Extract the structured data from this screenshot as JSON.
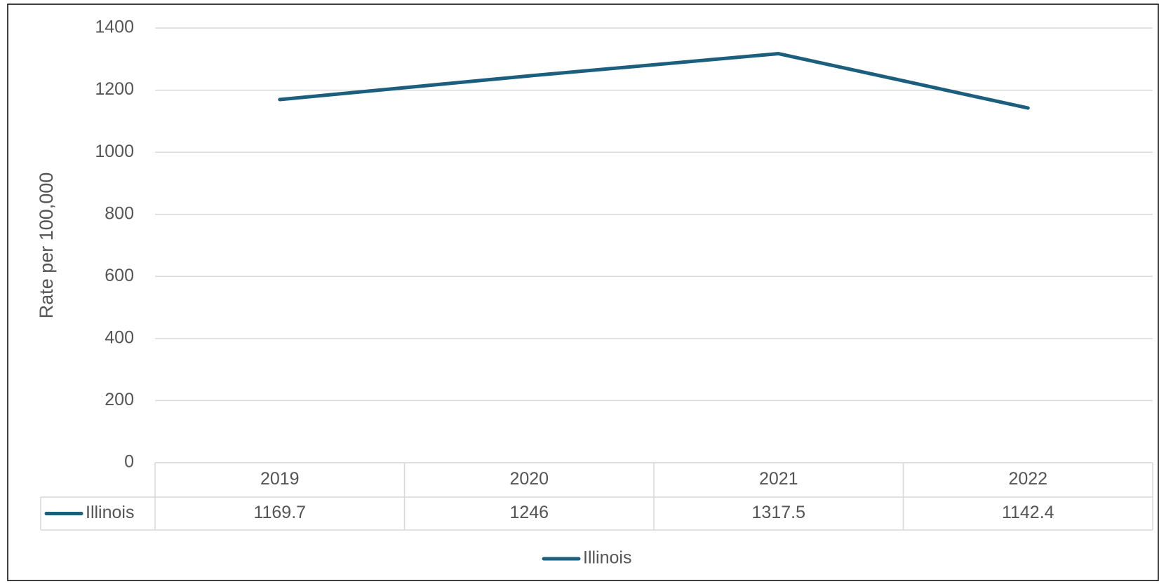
{
  "chart_data": {
    "type": "line",
    "y_label": "Rate per 100,000",
    "categories": [
      "2019",
      "2020",
      "2021",
      "2022"
    ],
    "series": [
      {
        "name": "Illinois",
        "color": "#1b5e7e",
        "values": [
          1169.7,
          1246,
          1317.5,
          1142.4
        ]
      }
    ],
    "ylim": [
      0,
      1400
    ],
    "yticks": [
      0,
      200,
      400,
      600,
      800,
      1000,
      1200,
      1400
    ],
    "grid": true,
    "data_table": true,
    "legend": "bottom"
  }
}
